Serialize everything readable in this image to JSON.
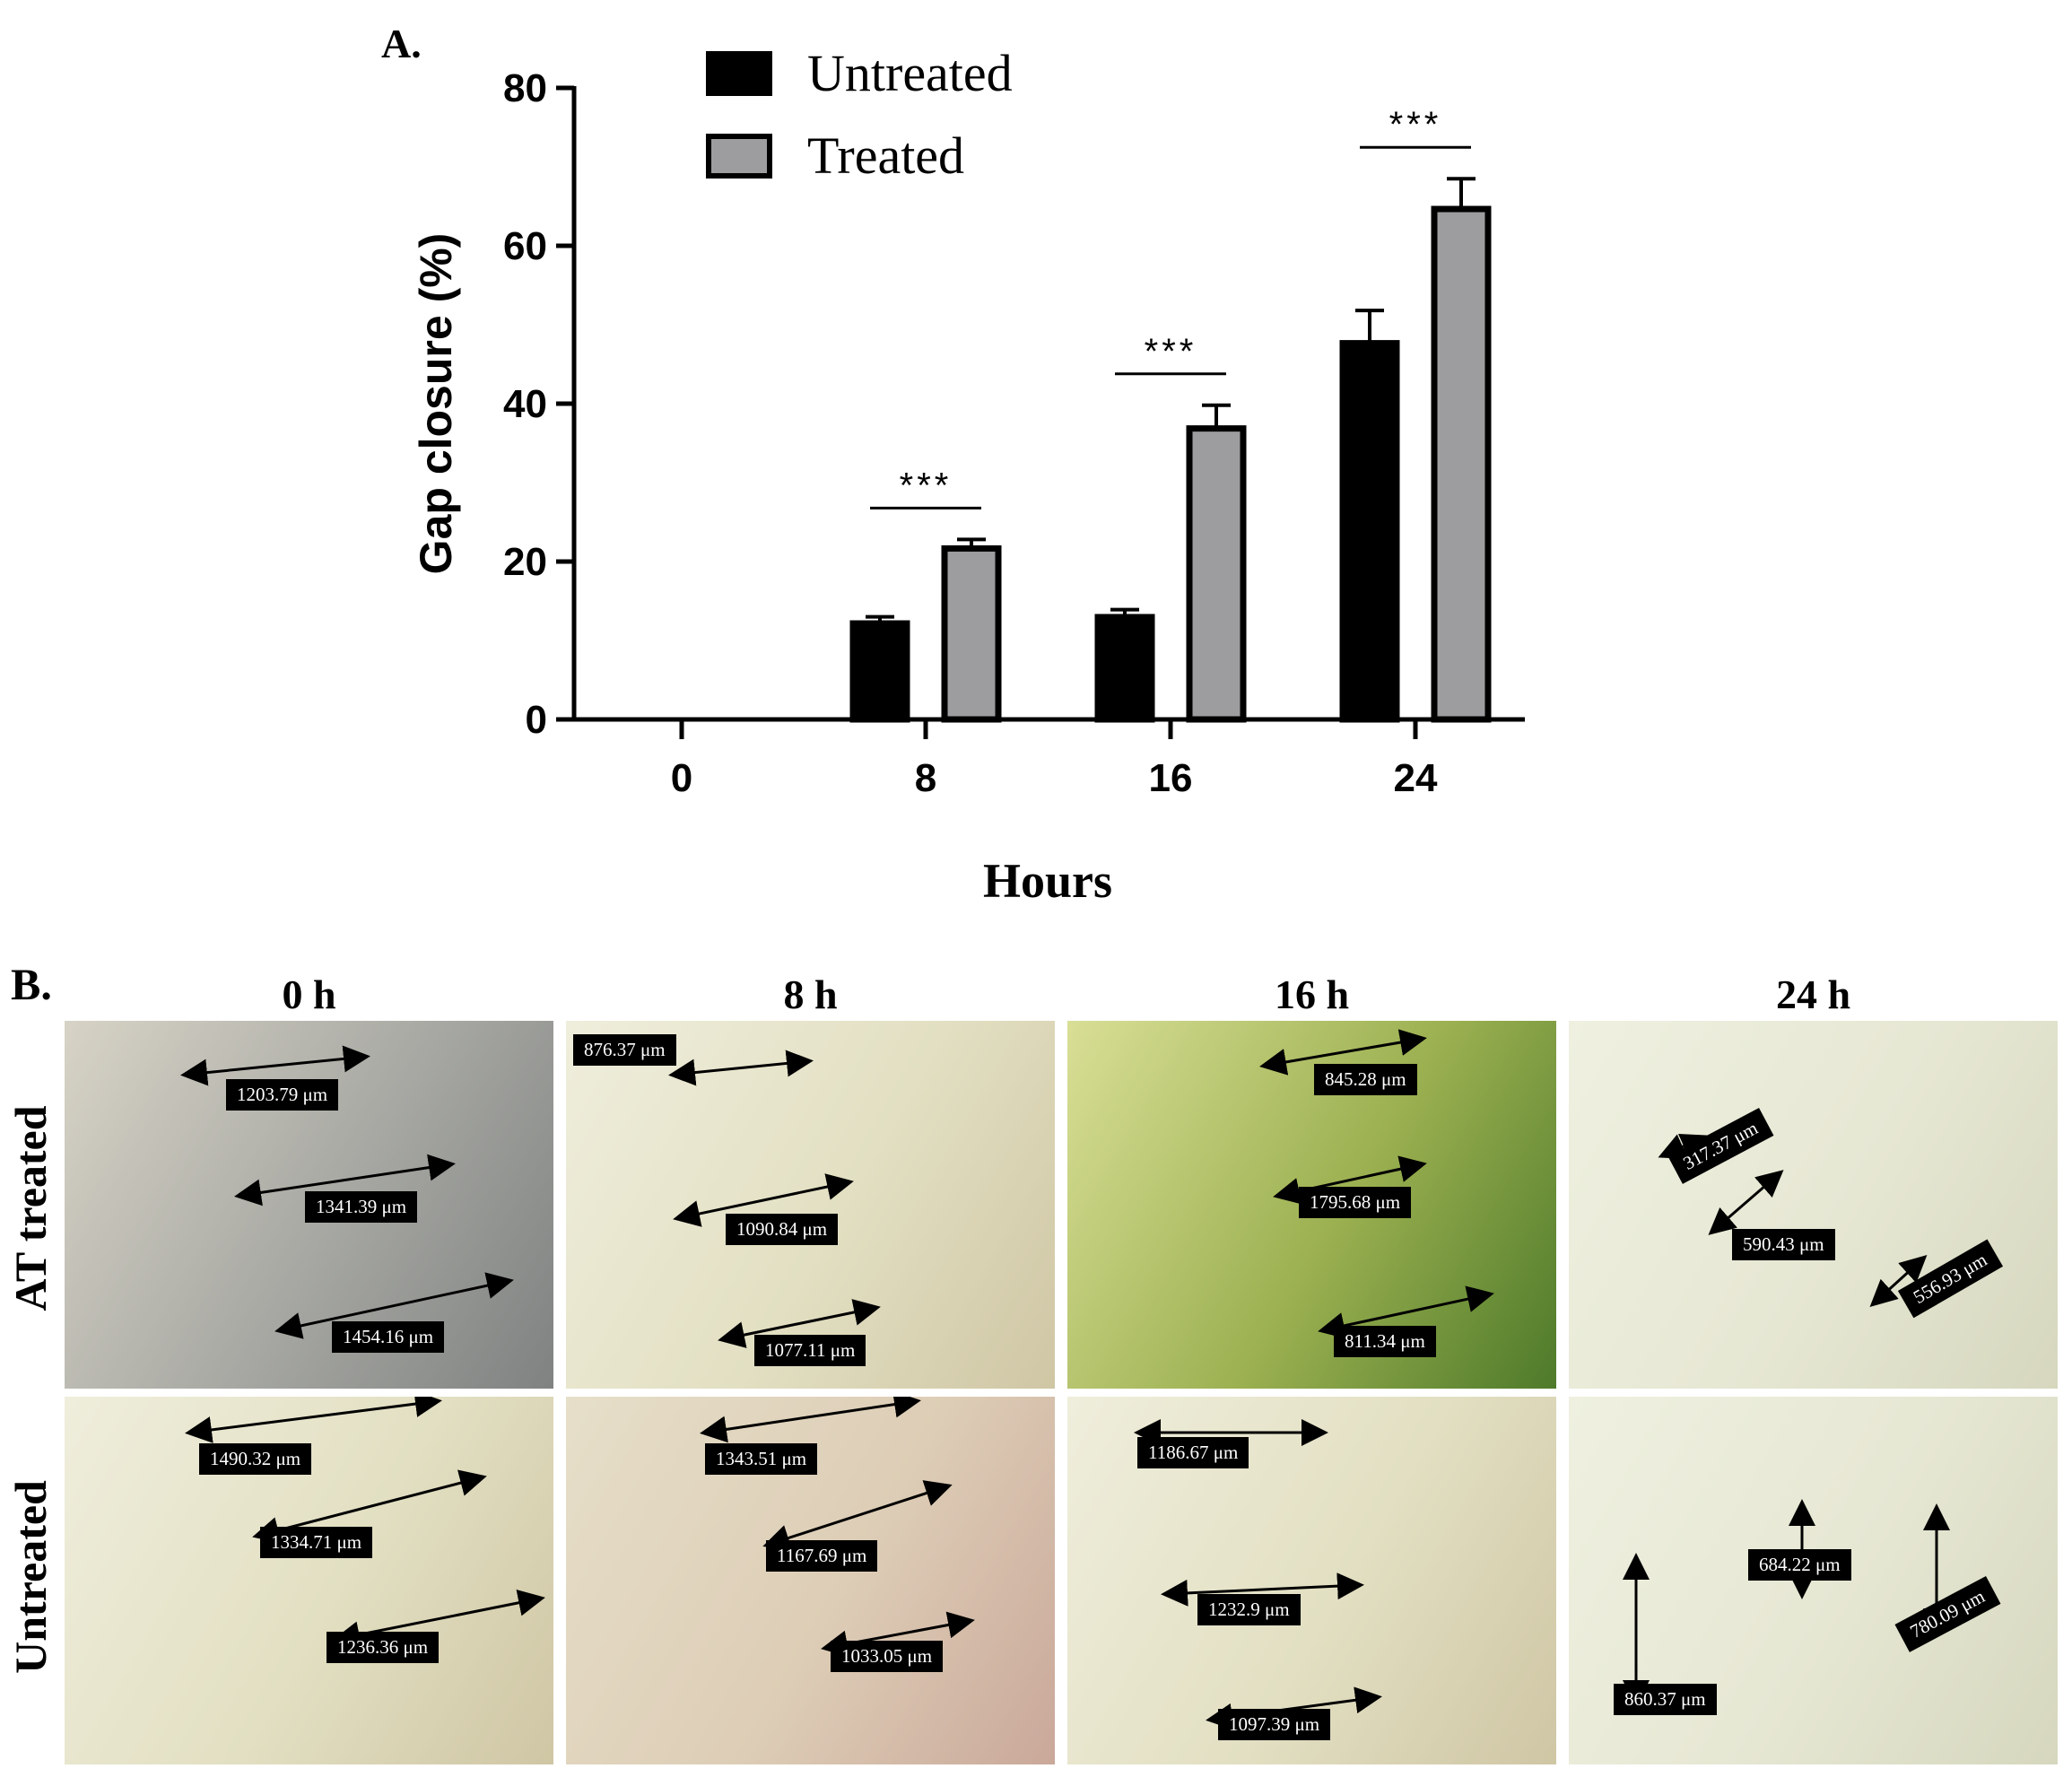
{
  "panel_a_label": "A.",
  "panel_b_label": "B.",
  "chart_data": {
    "type": "bar",
    "categories": [
      "0",
      "8",
      "16",
      "24"
    ],
    "series": [
      {
        "name": "Untreated",
        "values": [
          0,
          12.5,
          13.3,
          48.0
        ],
        "errors": [
          0,
          0.5,
          0.6,
          3.8
        ],
        "color": "#000000"
      },
      {
        "name": "Treated",
        "values": [
          0,
          22.0,
          37.2,
          65.0
        ],
        "errors": [
          0,
          0.8,
          2.6,
          3.5
        ],
        "color": "#9d9d9f"
      }
    ],
    "significance": [
      {
        "category": "8",
        "label": "***"
      },
      {
        "category": "16",
        "label": "***"
      },
      {
        "category": "24",
        "label": "***"
      }
    ],
    "xlabel": "Hours",
    "ylabel": "Gap closure (%)",
    "ylim": [
      0,
      80
    ],
    "yticks": [
      0,
      20,
      40,
      60,
      80
    ],
    "legend_position": "top-left",
    "grid": false
  },
  "panel_b": {
    "columns": [
      "0 h",
      "8 h",
      "16 h",
      "24 h"
    ],
    "rows": [
      {
        "label": "AT treated",
        "images": [
          {
            "tone": "gray",
            "measurements": [
              "1203.79 μm",
              "1341.39 μm",
              "1454.16 μm"
            ]
          },
          {
            "tone": "cream",
            "measurements": [
              "876.37 μm",
              "1090.84 μm",
              "1077.11 μm"
            ]
          },
          {
            "tone": "green",
            "measurements": [
              "845.28 μm",
              "1795.68 μm",
              "811.34 μm"
            ]
          },
          {
            "tone": "pale",
            "measurements": [
              "317.37 μm",
              "590.43 μm",
              "556.93 μm"
            ]
          }
        ]
      },
      {
        "label": "Untreated",
        "images": [
          {
            "tone": "cream",
            "measurements": [
              "1490.32 μm",
              "1334.71 μm",
              "1236.36 μm"
            ]
          },
          {
            "tone": "pink",
            "measurements": [
              "1343.51 μm",
              "1167.69 μm",
              "1033.05 μm"
            ]
          },
          {
            "tone": "cream",
            "measurements": [
              "1186.67 μm",
              "1232.9 μm",
              "1097.39 μm"
            ]
          },
          {
            "tone": "pale",
            "measurements": [
              "684.22 μm",
              "780.09 μm",
              "860.37 μm"
            ]
          }
        ]
      }
    ]
  }
}
